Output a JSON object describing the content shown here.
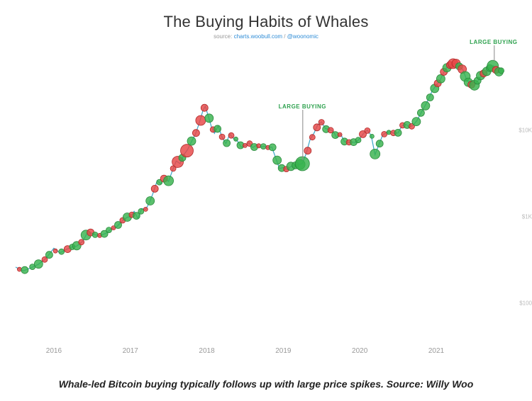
{
  "title": "The Buying Habits of Whales",
  "source_prefix": "source: ",
  "source_text": "charts.woobull.com",
  "source_sep": " / ",
  "source_handle": "@woonomic",
  "caption": "Whale-led Bitcoin buying typically follows up with large price spikes. Source: Willy Woo",
  "chart": {
    "type": "line+scatter",
    "background_color": "#ffffff",
    "line_color": "#3aa6c9",
    "line_width": 1.2,
    "buy_color": "#37b24d",
    "sell_color": "#e64545",
    "buy_stroke": "#2b8a3e",
    "sell_stroke": "#b02a2a",
    "marker_opacity": 0.82,
    "x_start": 2015.5,
    "x_end": 2021.9,
    "y_scale": "log",
    "y_min": 40,
    "y_max": 100000,
    "x_ticks": [
      2016,
      2017,
      2018,
      2019,
      2020,
      2021
    ],
    "y_ticks": [
      {
        "v": 100,
        "label": "$100"
      },
      {
        "v": 1000,
        "label": "$1K"
      },
      {
        "v": 10000,
        "label": "$10K"
      }
    ],
    "tick_color": "#bbbbbb",
    "tick_fontsize": 8,
    "xlabel_fontsize": 10,
    "callouts": [
      {
        "text": "LARGE BUYING",
        "x": 2019.25,
        "y_top": 17000,
        "y_target": 4100
      },
      {
        "text": "LARGE BUYING",
        "x": 2021.75,
        "y_top": 95000,
        "y_target": 58000
      }
    ],
    "price": [
      [
        2015.5,
        260
      ],
      [
        2015.6,
        235
      ],
      [
        2015.7,
        255
      ],
      [
        2015.8,
        280
      ],
      [
        2015.9,
        330
      ],
      [
        2016.0,
        430
      ],
      [
        2016.08,
        380
      ],
      [
        2016.15,
        410
      ],
      [
        2016.22,
        440
      ],
      [
        2016.3,
        455
      ],
      [
        2016.38,
        520
      ],
      [
        2016.45,
        680
      ],
      [
        2016.52,
        620
      ],
      [
        2016.6,
        600
      ],
      [
        2016.68,
        640
      ],
      [
        2016.75,
        720
      ],
      [
        2016.82,
        760
      ],
      [
        2016.9,
        900
      ],
      [
        2016.96,
        980
      ],
      [
        2017.0,
        1000
      ],
      [
        2017.05,
        1150
      ],
      [
        2017.1,
        950
      ],
      [
        2017.15,
        1240
      ],
      [
        2017.2,
        1210
      ],
      [
        2017.25,
        1450
      ],
      [
        2017.3,
        1900
      ],
      [
        2017.35,
        2600
      ],
      [
        2017.4,
        2400
      ],
      [
        2017.45,
        2800
      ],
      [
        2017.5,
        2550
      ],
      [
        2017.55,
        3400
      ],
      [
        2017.6,
        4400
      ],
      [
        2017.65,
        4100
      ],
      [
        2017.7,
        5200
      ],
      [
        2017.75,
        6000
      ],
      [
        2017.8,
        7400
      ],
      [
        2017.85,
        9000
      ],
      [
        2017.9,
        12000
      ],
      [
        2017.95,
        17000
      ],
      [
        2017.98,
        19000
      ],
      [
        2018.02,
        14500
      ],
      [
        2018.06,
        11000
      ],
      [
        2018.1,
        9200
      ],
      [
        2018.15,
        11200
      ],
      [
        2018.2,
        8300
      ],
      [
        2018.25,
        7000
      ],
      [
        2018.3,
        9000
      ],
      [
        2018.35,
        8000
      ],
      [
        2018.4,
        7500
      ],
      [
        2018.45,
        6400
      ],
      [
        2018.5,
        6600
      ],
      [
        2018.55,
        7200
      ],
      [
        2018.6,
        6300
      ],
      [
        2018.65,
        6700
      ],
      [
        2018.7,
        6400
      ],
      [
        2018.75,
        6500
      ],
      [
        2018.8,
        6300
      ],
      [
        2018.85,
        6400
      ],
      [
        2018.9,
        4800
      ],
      [
        2018.95,
        3600
      ],
      [
        2019.0,
        3700
      ],
      [
        2019.05,
        3500
      ],
      [
        2019.1,
        3800
      ],
      [
        2019.15,
        3900
      ],
      [
        2019.2,
        4000
      ],
      [
        2019.25,
        4100
      ],
      [
        2019.3,
        5400
      ],
      [
        2019.35,
        7800
      ],
      [
        2019.4,
        9200
      ],
      [
        2019.45,
        11500
      ],
      [
        2019.5,
        12500
      ],
      [
        2019.55,
        10500
      ],
      [
        2019.6,
        10200
      ],
      [
        2019.65,
        9800
      ],
      [
        2019.7,
        8200
      ],
      [
        2019.75,
        9000
      ],
      [
        2019.8,
        7400
      ],
      [
        2019.85,
        7200
      ],
      [
        2019.9,
        7300
      ],
      [
        2019.95,
        7200
      ],
      [
        2020.0,
        8000
      ],
      [
        2020.05,
        9200
      ],
      [
        2020.1,
        10000
      ],
      [
        2020.15,
        8700
      ],
      [
        2020.2,
        5200
      ],
      [
        2020.25,
        6800
      ],
      [
        2020.3,
        8800
      ],
      [
        2020.35,
        9400
      ],
      [
        2020.4,
        9600
      ],
      [
        2020.45,
        9200
      ],
      [
        2020.5,
        9300
      ],
      [
        2020.55,
        11200
      ],
      [
        2020.6,
        11800
      ],
      [
        2020.65,
        10800
      ],
      [
        2020.7,
        11500
      ],
      [
        2020.75,
        13000
      ],
      [
        2020.8,
        15800
      ],
      [
        2020.85,
        19000
      ],
      [
        2020.9,
        23000
      ],
      [
        2020.95,
        29000
      ],
      [
        2021.0,
        33000
      ],
      [
        2021.05,
        38000
      ],
      [
        2021.1,
        47000
      ],
      [
        2021.15,
        55000
      ],
      [
        2021.2,
        58000
      ],
      [
        2021.25,
        60000
      ],
      [
        2021.3,
        55000
      ],
      [
        2021.35,
        50000
      ],
      [
        2021.4,
        38000
      ],
      [
        2021.45,
        34000
      ],
      [
        2021.5,
        33000
      ],
      [
        2021.55,
        38000
      ],
      [
        2021.6,
        44000
      ],
      [
        2021.65,
        47000
      ],
      [
        2021.7,
        52000
      ],
      [
        2021.75,
        56000
      ],
      [
        2021.8,
        47000
      ],
      [
        2021.85,
        49000
      ]
    ],
    "markers": [
      {
        "x": 2015.55,
        "y": 245,
        "r": 3,
        "t": "s"
      },
      {
        "x": 2015.62,
        "y": 240,
        "r": 5,
        "t": "b"
      },
      {
        "x": 2015.72,
        "y": 262,
        "r": 4,
        "t": "b"
      },
      {
        "x": 2015.8,
        "y": 282,
        "r": 6,
        "t": "b"
      },
      {
        "x": 2015.88,
        "y": 318,
        "r": 4,
        "t": "s"
      },
      {
        "x": 2015.94,
        "y": 360,
        "r": 5,
        "t": "b"
      },
      {
        "x": 2016.02,
        "y": 400,
        "r": 3,
        "t": "s"
      },
      {
        "x": 2016.1,
        "y": 392,
        "r": 4,
        "t": "b"
      },
      {
        "x": 2016.18,
        "y": 420,
        "r": 5,
        "t": "s"
      },
      {
        "x": 2016.24,
        "y": 445,
        "r": 4,
        "t": "b"
      },
      {
        "x": 2016.3,
        "y": 460,
        "r": 6,
        "t": "b"
      },
      {
        "x": 2016.36,
        "y": 505,
        "r": 4,
        "t": "s"
      },
      {
        "x": 2016.42,
        "y": 610,
        "r": 7,
        "t": "b"
      },
      {
        "x": 2016.48,
        "y": 655,
        "r": 5,
        "t": "s"
      },
      {
        "x": 2016.54,
        "y": 615,
        "r": 4,
        "t": "b"
      },
      {
        "x": 2016.6,
        "y": 605,
        "r": 3,
        "t": "s"
      },
      {
        "x": 2016.66,
        "y": 630,
        "r": 5,
        "t": "b"
      },
      {
        "x": 2016.72,
        "y": 700,
        "r": 4,
        "t": "b"
      },
      {
        "x": 2016.78,
        "y": 740,
        "r": 3,
        "t": "s"
      },
      {
        "x": 2016.84,
        "y": 800,
        "r": 5,
        "t": "b"
      },
      {
        "x": 2016.9,
        "y": 905,
        "r": 4,
        "t": "s"
      },
      {
        "x": 2016.96,
        "y": 985,
        "r": 6,
        "t": "b"
      },
      {
        "x": 2017.02,
        "y": 1050,
        "r": 4,
        "t": "s"
      },
      {
        "x": 2017.08,
        "y": 1020,
        "r": 5,
        "t": "b"
      },
      {
        "x": 2017.14,
        "y": 1150,
        "r": 4,
        "t": "b"
      },
      {
        "x": 2017.2,
        "y": 1215,
        "r": 3,
        "t": "s"
      },
      {
        "x": 2017.26,
        "y": 1520,
        "r": 6,
        "t": "b"
      },
      {
        "x": 2017.32,
        "y": 2100,
        "r": 5,
        "t": "s"
      },
      {
        "x": 2017.38,
        "y": 2500,
        "r": 4,
        "t": "b"
      },
      {
        "x": 2017.44,
        "y": 2750,
        "r": 5,
        "t": "s"
      },
      {
        "x": 2017.5,
        "y": 2600,
        "r": 7,
        "t": "b"
      },
      {
        "x": 2017.56,
        "y": 3600,
        "r": 4,
        "t": "s"
      },
      {
        "x": 2017.62,
        "y": 4300,
        "r": 8,
        "t": "s"
      },
      {
        "x": 2017.68,
        "y": 4800,
        "r": 5,
        "t": "b"
      },
      {
        "x": 2017.74,
        "y": 5800,
        "r": 9,
        "t": "s"
      },
      {
        "x": 2017.8,
        "y": 7500,
        "r": 6,
        "t": "b"
      },
      {
        "x": 2017.86,
        "y": 9300,
        "r": 5,
        "t": "s"
      },
      {
        "x": 2017.92,
        "y": 13000,
        "r": 7,
        "t": "s"
      },
      {
        "x": 2017.97,
        "y": 18200,
        "r": 5,
        "t": "s"
      },
      {
        "x": 2018.03,
        "y": 13800,
        "r": 6,
        "t": "b"
      },
      {
        "x": 2018.08,
        "y": 10200,
        "r": 4,
        "t": "s"
      },
      {
        "x": 2018.14,
        "y": 10400,
        "r": 5,
        "t": "b"
      },
      {
        "x": 2018.2,
        "y": 8400,
        "r": 4,
        "t": "s"
      },
      {
        "x": 2018.26,
        "y": 7100,
        "r": 5,
        "t": "b"
      },
      {
        "x": 2018.32,
        "y": 8700,
        "r": 4,
        "t": "s"
      },
      {
        "x": 2018.38,
        "y": 7900,
        "r": 3,
        "t": "b"
      },
      {
        "x": 2018.44,
        "y": 6700,
        "r": 5,
        "t": "b"
      },
      {
        "x": 2018.5,
        "y": 6650,
        "r": 3,
        "t": "s"
      },
      {
        "x": 2018.56,
        "y": 7000,
        "r": 4,
        "t": "s"
      },
      {
        "x": 2018.62,
        "y": 6400,
        "r": 5,
        "t": "b"
      },
      {
        "x": 2018.68,
        "y": 6600,
        "r": 3,
        "t": "s"
      },
      {
        "x": 2018.74,
        "y": 6500,
        "r": 4,
        "t": "b"
      },
      {
        "x": 2018.8,
        "y": 6300,
        "r": 3,
        "t": "s"
      },
      {
        "x": 2018.86,
        "y": 6350,
        "r": 5,
        "t": "b"
      },
      {
        "x": 2018.92,
        "y": 4500,
        "r": 6,
        "t": "b"
      },
      {
        "x": 2018.98,
        "y": 3650,
        "r": 5,
        "t": "b"
      },
      {
        "x": 2019.04,
        "y": 3550,
        "r": 4,
        "t": "s"
      },
      {
        "x": 2019.1,
        "y": 3820,
        "r": 6,
        "t": "b"
      },
      {
        "x": 2019.16,
        "y": 3920,
        "r": 5,
        "t": "b"
      },
      {
        "x": 2019.22,
        "y": 4020,
        "r": 7,
        "t": "b"
      },
      {
        "x": 2019.25,
        "y": 4100,
        "r": 10,
        "t": "b"
      },
      {
        "x": 2019.32,
        "y": 5800,
        "r": 5,
        "t": "s"
      },
      {
        "x": 2019.38,
        "y": 8300,
        "r": 4,
        "t": "s"
      },
      {
        "x": 2019.44,
        "y": 10800,
        "r": 5,
        "t": "s"
      },
      {
        "x": 2019.5,
        "y": 12400,
        "r": 4,
        "t": "s"
      },
      {
        "x": 2019.56,
        "y": 10300,
        "r": 5,
        "t": "b"
      },
      {
        "x": 2019.62,
        "y": 10000,
        "r": 4,
        "t": "s"
      },
      {
        "x": 2019.68,
        "y": 8800,
        "r": 5,
        "t": "b"
      },
      {
        "x": 2019.74,
        "y": 8900,
        "r": 3,
        "t": "s"
      },
      {
        "x": 2019.8,
        "y": 7400,
        "r": 5,
        "t": "b"
      },
      {
        "x": 2019.86,
        "y": 7250,
        "r": 4,
        "t": "s"
      },
      {
        "x": 2019.92,
        "y": 7280,
        "r": 5,
        "t": "b"
      },
      {
        "x": 2019.98,
        "y": 7700,
        "r": 4,
        "t": "b"
      },
      {
        "x": 2020.04,
        "y": 9000,
        "r": 5,
        "t": "s"
      },
      {
        "x": 2020.1,
        "y": 9900,
        "r": 4,
        "t": "s"
      },
      {
        "x": 2020.16,
        "y": 8500,
        "r": 3,
        "t": "b"
      },
      {
        "x": 2020.2,
        "y": 5300,
        "r": 7,
        "t": "b"
      },
      {
        "x": 2020.26,
        "y": 7000,
        "r": 5,
        "t": "b"
      },
      {
        "x": 2020.32,
        "y": 9000,
        "r": 4,
        "t": "s"
      },
      {
        "x": 2020.38,
        "y": 9450,
        "r": 3,
        "t": "b"
      },
      {
        "x": 2020.44,
        "y": 9300,
        "r": 4,
        "t": "s"
      },
      {
        "x": 2020.5,
        "y": 9350,
        "r": 5,
        "t": "b"
      },
      {
        "x": 2020.56,
        "y": 11400,
        "r": 4,
        "t": "s"
      },
      {
        "x": 2020.62,
        "y": 11500,
        "r": 5,
        "t": "b"
      },
      {
        "x": 2020.68,
        "y": 11100,
        "r": 4,
        "t": "s"
      },
      {
        "x": 2020.74,
        "y": 12600,
        "r": 6,
        "t": "b"
      },
      {
        "x": 2020.8,
        "y": 15900,
        "r": 5,
        "t": "b"
      },
      {
        "x": 2020.86,
        "y": 19200,
        "r": 6,
        "t": "b"
      },
      {
        "x": 2020.92,
        "y": 24000,
        "r": 5,
        "t": "b"
      },
      {
        "x": 2020.98,
        "y": 30500,
        "r": 6,
        "t": "b"
      },
      {
        "x": 2021.02,
        "y": 35000,
        "r": 5,
        "t": "s"
      },
      {
        "x": 2021.06,
        "y": 39500,
        "r": 6,
        "t": "b"
      },
      {
        "x": 2021.1,
        "y": 47500,
        "r": 5,
        "t": "s"
      },
      {
        "x": 2021.14,
        "y": 53000,
        "r": 6,
        "t": "b"
      },
      {
        "x": 2021.18,
        "y": 57000,
        "r": 5,
        "t": "s"
      },
      {
        "x": 2021.22,
        "y": 59000,
        "r": 7,
        "t": "s"
      },
      {
        "x": 2021.26,
        "y": 59500,
        "r": 6,
        "t": "s"
      },
      {
        "x": 2021.3,
        "y": 55000,
        "r": 5,
        "t": "b"
      },
      {
        "x": 2021.34,
        "y": 51000,
        "r": 6,
        "t": "s"
      },
      {
        "x": 2021.38,
        "y": 42000,
        "r": 7,
        "t": "b"
      },
      {
        "x": 2021.42,
        "y": 36000,
        "r": 6,
        "t": "b"
      },
      {
        "x": 2021.46,
        "y": 33800,
        "r": 5,
        "t": "s"
      },
      {
        "x": 2021.5,
        "y": 33200,
        "r": 7,
        "t": "b"
      },
      {
        "x": 2021.54,
        "y": 37500,
        "r": 5,
        "t": "b"
      },
      {
        "x": 2021.58,
        "y": 43000,
        "r": 6,
        "t": "b"
      },
      {
        "x": 2021.62,
        "y": 45500,
        "r": 5,
        "t": "s"
      },
      {
        "x": 2021.66,
        "y": 48000,
        "r": 6,
        "t": "b"
      },
      {
        "x": 2021.7,
        "y": 52500,
        "r": 5,
        "t": "b"
      },
      {
        "x": 2021.74,
        "y": 55500,
        "r": 8,
        "t": "b"
      },
      {
        "x": 2021.78,
        "y": 50000,
        "r": 5,
        "t": "s"
      },
      {
        "x": 2021.82,
        "y": 47500,
        "r": 6,
        "t": "b"
      },
      {
        "x": 2021.85,
        "y": 49000,
        "r": 4,
        "t": "b"
      }
    ]
  }
}
